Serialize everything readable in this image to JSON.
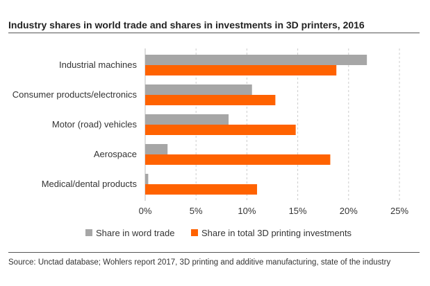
{
  "chart_data": {
    "type": "bar",
    "orientation": "horizontal",
    "title": "Industry shares in world trade and shares in investments in 3D printers, 2016",
    "categories": [
      "Industrial machines",
      "Consumer products/electronics",
      "Motor (road) vehicles",
      "Aerospace",
      "Medical/dental products"
    ],
    "series": [
      {
        "name": "Share in word trade",
        "color": "#a6a6a6",
        "values": [
          21.8,
          10.5,
          8.2,
          2.2,
          0.3
        ]
      },
      {
        "name": "Share in total 3D printing investments",
        "color": "#ff6200",
        "values": [
          18.8,
          12.8,
          14.8,
          18.2,
          11.0
        ]
      }
    ],
    "xlim": [
      0,
      25
    ],
    "xticks": [
      0,
      5,
      10,
      15,
      20,
      25
    ],
    "xtick_labels": [
      "0%",
      "5%",
      "10%",
      "15%",
      "20%",
      "25%"
    ],
    "grid": "vertical dashed",
    "legend_position": "bottom"
  },
  "source": "Source: Unctad database; Wohlers report 2017, 3D printing and additive manufacturing, state of the industry"
}
